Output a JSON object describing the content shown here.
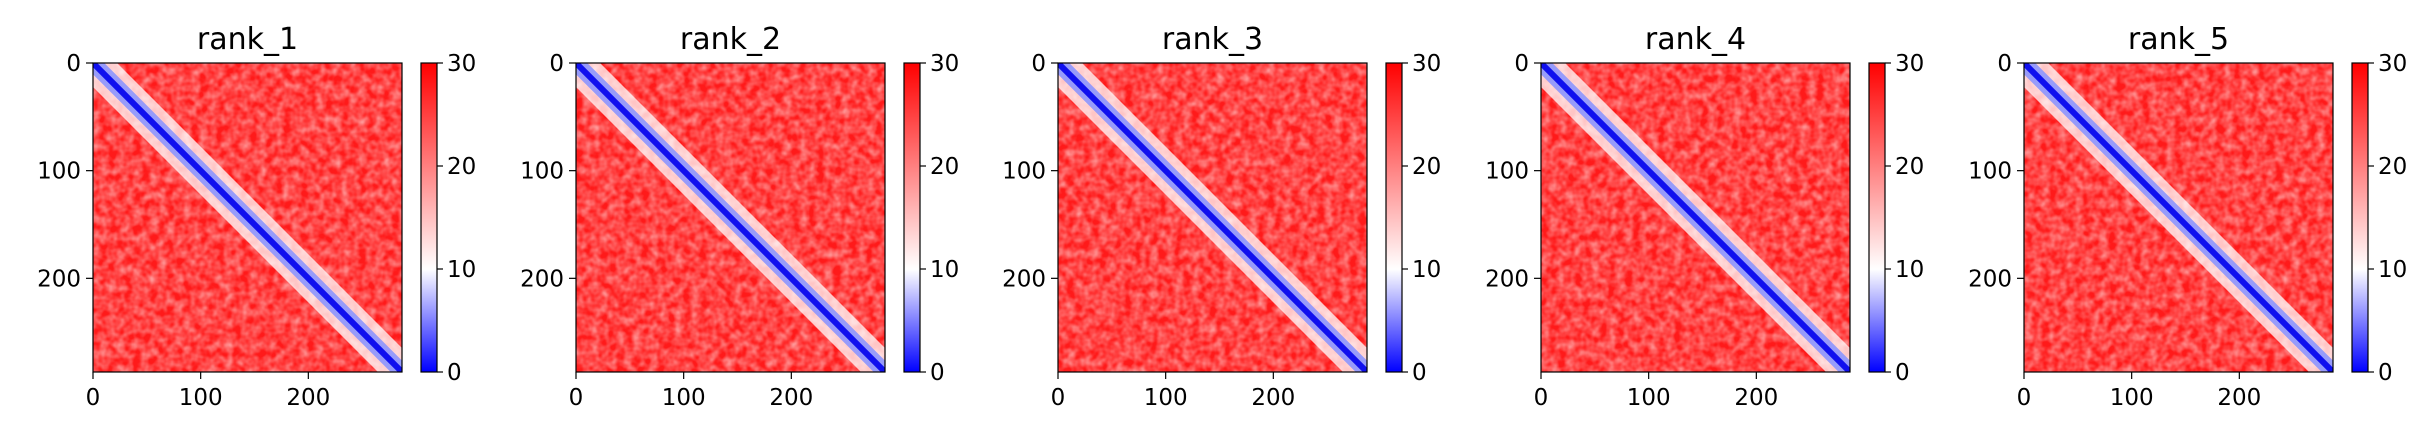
{
  "chart_data": [
    {
      "type": "heatmap",
      "title": "rank_1",
      "xticks": [
        0,
        100,
        200
      ],
      "yticks": [
        0,
        100,
        200
      ],
      "xlim": [
        0,
        287
      ],
      "ylim": [
        287,
        0
      ],
      "colorbar": {
        "ticks": [
          0,
          10,
          20,
          30
        ],
        "range": [
          0,
          30
        ],
        "colormap": [
          "#0000ff",
          "#ffffff",
          "#ff0000"
        ]
      }
    },
    {
      "type": "heatmap",
      "title": "rank_2",
      "xticks": [
        0,
        100,
        200
      ],
      "yticks": [
        0,
        100,
        200
      ],
      "xlim": [
        0,
        287
      ],
      "ylim": [
        287,
        0
      ],
      "colorbar": {
        "ticks": [
          0,
          10,
          20,
          30
        ],
        "range": [
          0,
          30
        ],
        "colormap": [
          "#0000ff",
          "#ffffff",
          "#ff0000"
        ]
      }
    },
    {
      "type": "heatmap",
      "title": "rank_3",
      "xticks": [
        0,
        100,
        200
      ],
      "yticks": [
        0,
        100,
        200
      ],
      "xlim": [
        0,
        287
      ],
      "ylim": [
        287,
        0
      ],
      "colorbar": {
        "ticks": [
          0,
          10,
          20,
          30
        ],
        "range": [
          0,
          30
        ],
        "colormap": [
          "#0000ff",
          "#ffffff",
          "#ff0000"
        ]
      }
    },
    {
      "type": "heatmap",
      "title": "rank_4",
      "xticks": [
        0,
        100,
        200
      ],
      "yticks": [
        0,
        100,
        200
      ],
      "xlim": [
        0,
        287
      ],
      "ylim": [
        287,
        0
      ],
      "colorbar": {
        "ticks": [
          0,
          10,
          20,
          30
        ],
        "range": [
          0,
          30
        ],
        "colormap": [
          "#0000ff",
          "#ffffff",
          "#ff0000"
        ]
      }
    },
    {
      "type": "heatmap",
      "title": "rank_5",
      "xticks": [
        0,
        100,
        200
      ],
      "yticks": [
        0,
        100,
        200
      ],
      "xlim": [
        0,
        287
      ],
      "ylim": [
        287,
        0
      ],
      "colorbar": {
        "ticks": [
          0,
          10,
          20,
          30
        ],
        "range": [
          0,
          30
        ],
        "colormap": [
          "#0000ff",
          "#ffffff",
          "#ff0000"
        ]
      }
    }
  ]
}
